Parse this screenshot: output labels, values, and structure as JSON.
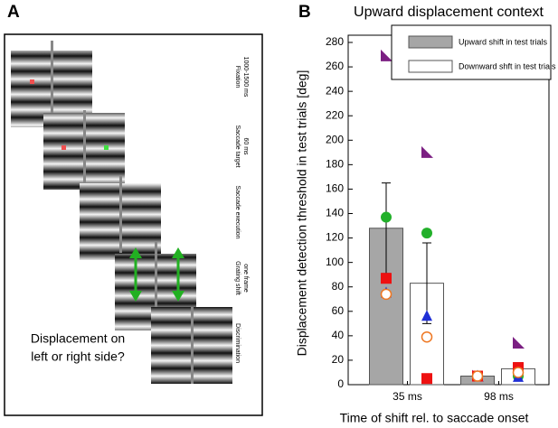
{
  "panel_a": {
    "label": "A",
    "steps": [
      [
        "Fixation",
        "1000-1500 ms"
      ],
      [
        "Saccade target",
        "60 ms"
      ],
      [
        "Saccade execution"
      ],
      [
        "Grating shift",
        "one frame"
      ],
      [
        "Discrimination"
      ]
    ],
    "question": [
      "Displacement on",
      "left or right side?"
    ]
  },
  "chart_data": {
    "type": "bar",
    "label": "B",
    "title": "Upward displacement context",
    "xlabel": "Time of shift rel. to saccade onset",
    "ylabel": "Displacement detection threshold in test trials [deg]",
    "categories": [
      "35 ms",
      "98 ms"
    ],
    "series": [
      {
        "name": "Upward shift in test trials",
        "color": "#a6a6a6",
        "values": [
          128,
          7
        ],
        "errors": [
          37,
          3
        ]
      },
      {
        "name": "Downward shft in test trials",
        "color": "#ffffff",
        "values": [
          83,
          13
        ],
        "errors": [
          33,
          5
        ]
      }
    ],
    "subjects": [
      {
        "shape": "corner-triangle",
        "color": "#7b1f82",
        "values": [
          [
            269,
            7
          ],
          [
            190,
            34
          ]
        ]
      },
      {
        "shape": "circle",
        "color": "#22b02a",
        "values": [
          [
            137,
            7
          ],
          [
            124,
            7
          ]
        ]
      },
      {
        "shape": "triangle",
        "color": "#1f2fd6",
        "values": [
          [
            75,
            7
          ],
          [
            56,
            6
          ]
        ]
      },
      {
        "shape": "square",
        "color": "#ee1111",
        "values": [
          [
            87,
            7
          ],
          [
            5,
            14
          ]
        ]
      },
      {
        "shape": "open-circle",
        "color": "#ee7722",
        "values": [
          [
            74,
            7
          ],
          [
            39,
            10
          ]
        ]
      }
    ],
    "ylim": [
      0,
      280
    ],
    "yticks": [
      0,
      20,
      40,
      60,
      80,
      100,
      120,
      140,
      160,
      180,
      200,
      220,
      240,
      260,
      280
    ],
    "legend": "top-right"
  }
}
